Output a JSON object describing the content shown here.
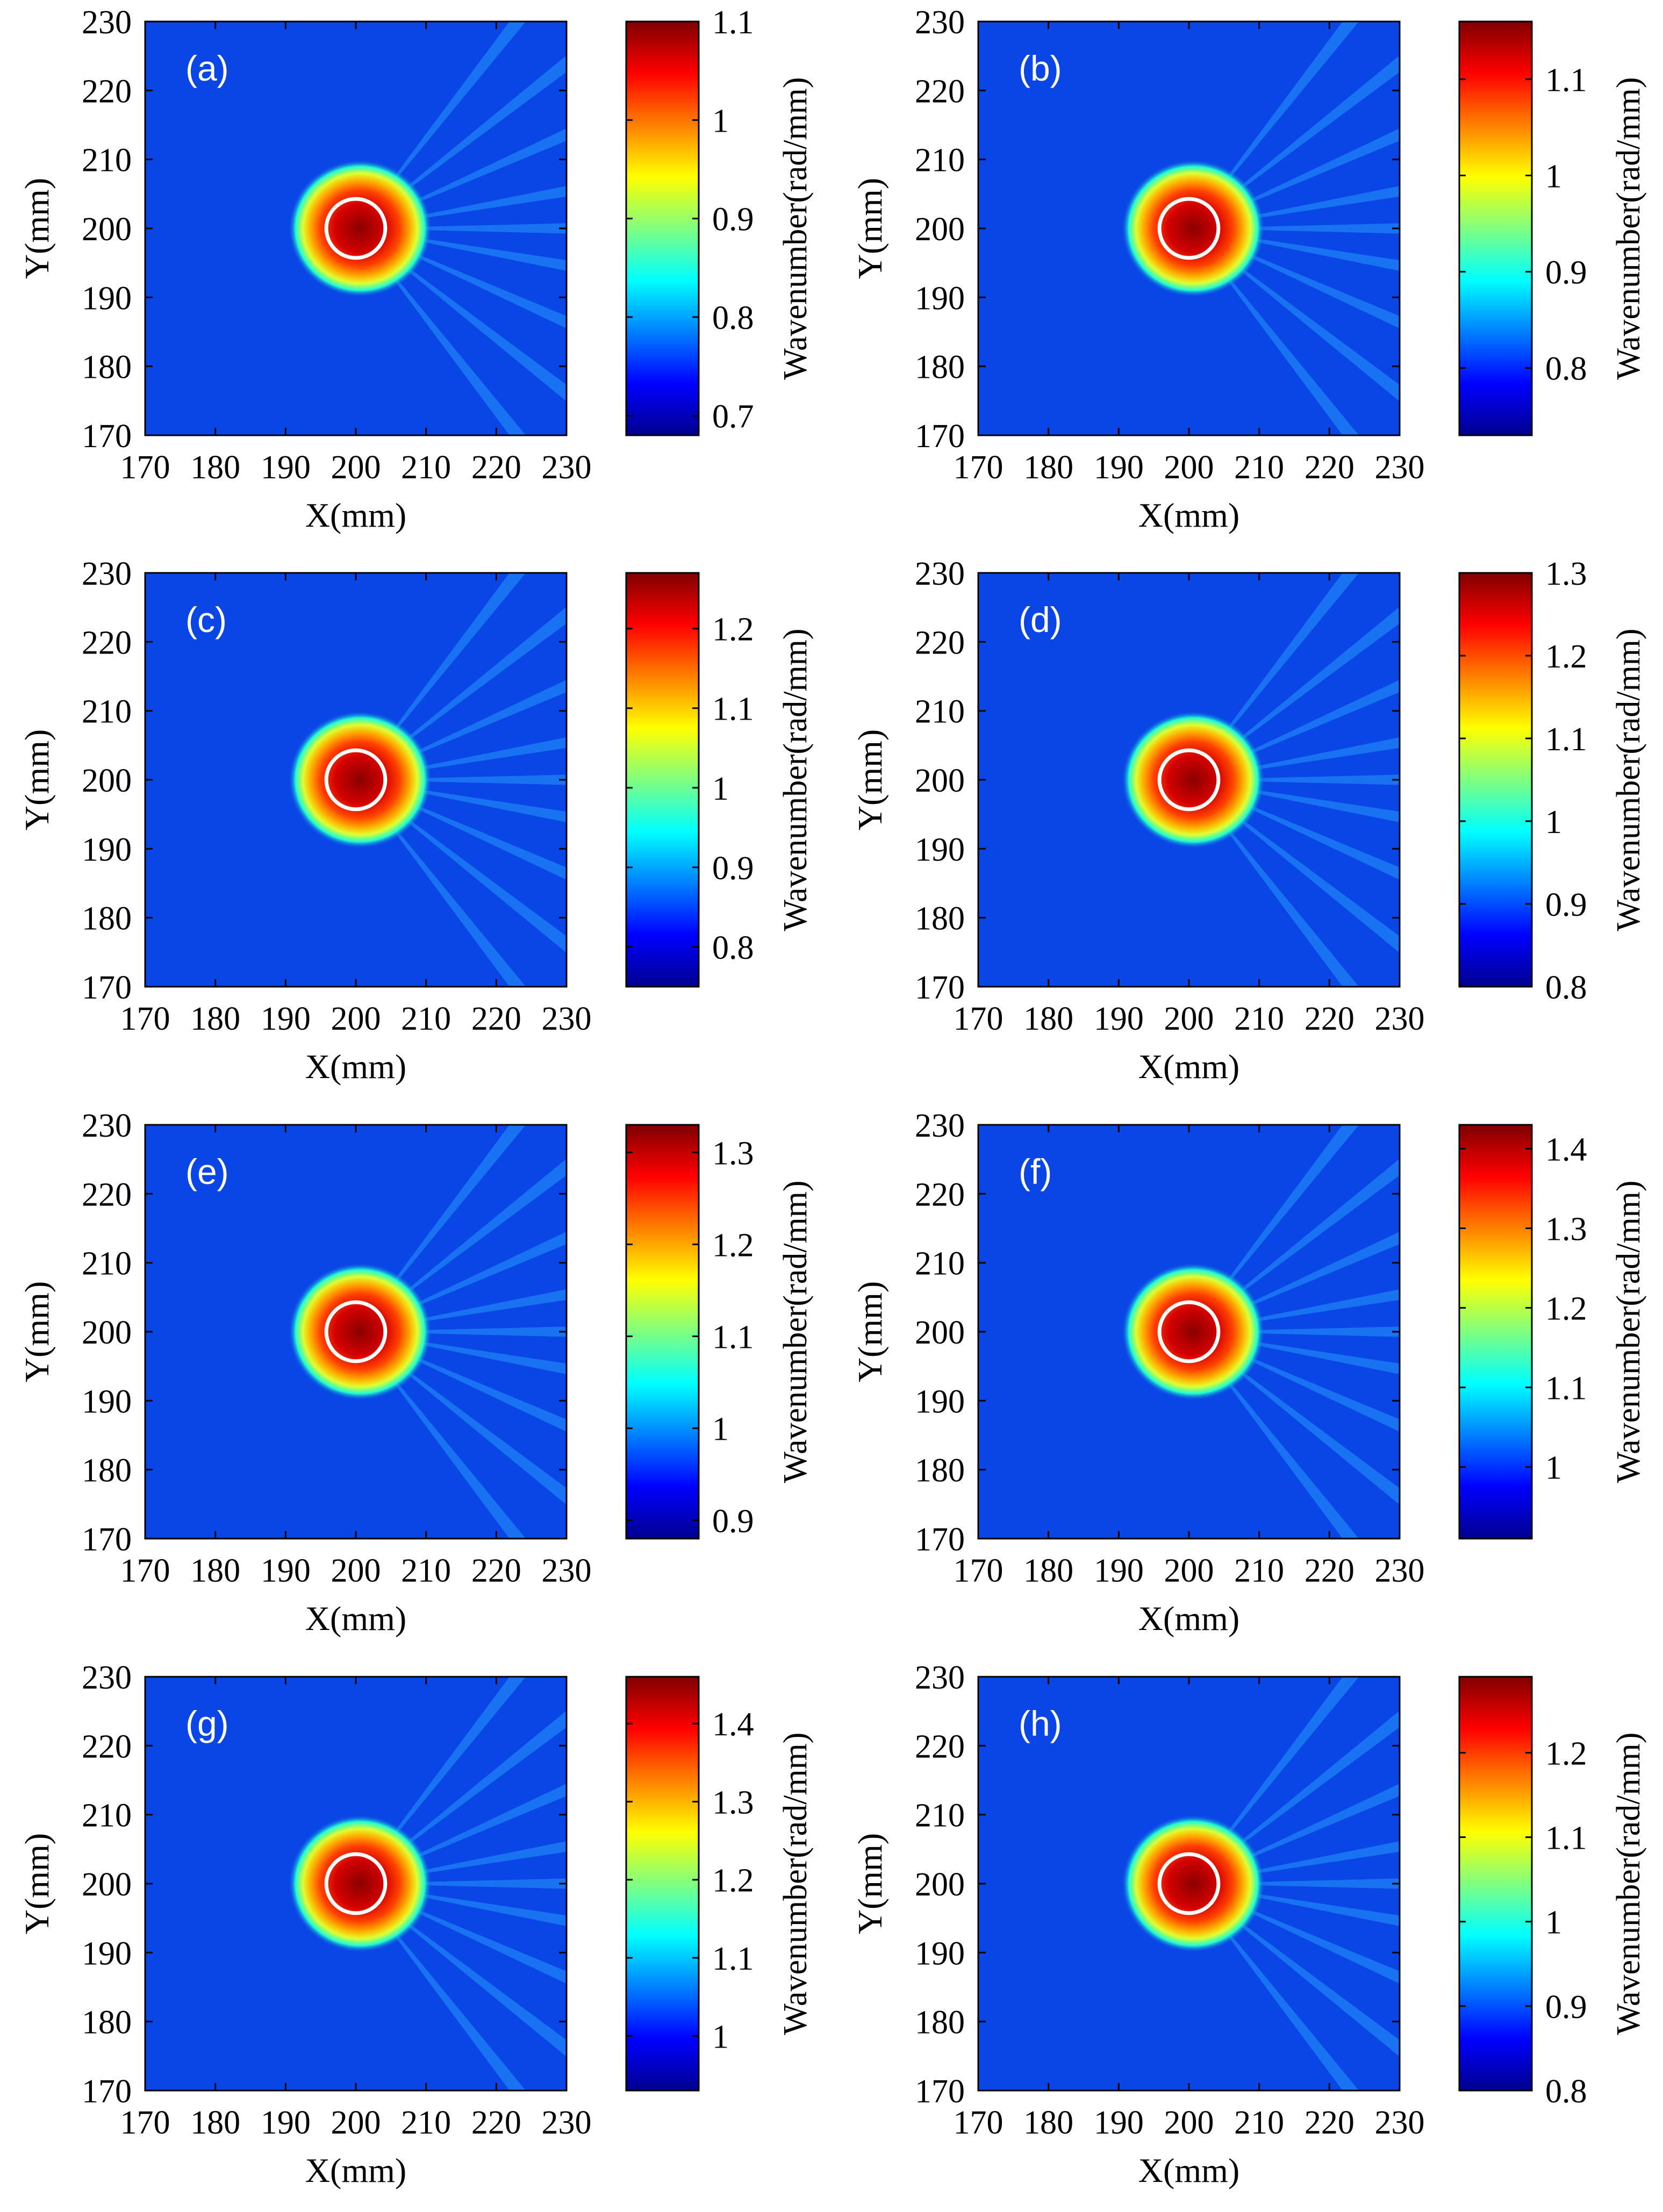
{
  "figure": {
    "description_free": true
  },
  "colormap": {
    "name": "jet",
    "stops": [
      "#00008f",
      "#0000ff",
      "#0080ff",
      "#00ffff",
      "#80ff80",
      "#ffff00",
      "#ff8000",
      "#ff0000",
      "#800000"
    ],
    "background_color": "#0a46e6",
    "ring_color": "#ffffff"
  },
  "chart_data": [
    {
      "type": "heatmap",
      "label": "(a)",
      "xlabel": "X(mm)",
      "ylabel": "Y(mm)",
      "xlim": [
        170,
        230
      ],
      "ylim": [
        170,
        230
      ],
      "xticks": [
        "170",
        "180",
        "190",
        "200",
        "210",
        "220",
        "230"
      ],
      "yticks": [
        "170",
        "180",
        "190",
        "200",
        "210",
        "220",
        "230"
      ],
      "defect_center": [
        200,
        200
      ],
      "defect_radius_mm": 4,
      "colorbar": {
        "label": "Wavenumber(rad/mm)",
        "range": [
          0.68,
          1.1
        ],
        "ticks": [
          0.7,
          0.8,
          0.9,
          1,
          1.1
        ],
        "tick_labels": [
          "0.7",
          "0.8",
          "0.9",
          "1",
          "1.1"
        ]
      },
      "background_value": 0.79
    },
    {
      "type": "heatmap",
      "label": "(b)",
      "xlabel": "X(mm)",
      "ylabel": "Y(mm)",
      "xlim": [
        170,
        230
      ],
      "ylim": [
        170,
        230
      ],
      "xticks": [
        "170",
        "180",
        "190",
        "200",
        "210",
        "220",
        "230"
      ],
      "yticks": [
        "170",
        "180",
        "190",
        "200",
        "210",
        "220",
        "230"
      ],
      "defect_center": [
        200,
        200
      ],
      "defect_radius_mm": 4,
      "colorbar": {
        "label": "Wavenumber(rad/mm)",
        "range": [
          0.73,
          1.16
        ],
        "ticks": [
          0.8,
          0.9,
          1,
          1.1
        ],
        "tick_labels": [
          "0.8",
          "0.9",
          "1",
          "1.1"
        ]
      },
      "background_value": 0.79
    },
    {
      "type": "heatmap",
      "label": "(c)",
      "xlabel": "X(mm)",
      "ylabel": "Y(mm)",
      "xlim": [
        170,
        230
      ],
      "ylim": [
        170,
        230
      ],
      "xticks": [
        "170",
        "180",
        "190",
        "200",
        "210",
        "220",
        "230"
      ],
      "yticks": [
        "170",
        "180",
        "190",
        "200",
        "210",
        "220",
        "230"
      ],
      "defect_center": [
        200,
        200
      ],
      "defect_radius_mm": 4,
      "colorbar": {
        "label": "Wavenumber(rad/mm)",
        "range": [
          0.75,
          1.27
        ],
        "ticks": [
          0.8,
          0.9,
          1,
          1.1,
          1.2
        ],
        "tick_labels": [
          "0.8",
          "0.9",
          "1",
          "1.1",
          "1.2"
        ]
      },
      "background_value": 0.83
    },
    {
      "type": "heatmap",
      "label": "(d)",
      "xlabel": "X(mm)",
      "ylabel": "Y(mm)",
      "xlim": [
        170,
        230
      ],
      "ylim": [
        170,
        230
      ],
      "xticks": [
        "170",
        "180",
        "190",
        "200",
        "210",
        "220",
        "230"
      ],
      "yticks": [
        "170",
        "180",
        "190",
        "200",
        "210",
        "220",
        "230"
      ],
      "defect_center": [
        200,
        200
      ],
      "defect_radius_mm": 4,
      "colorbar": {
        "label": "Wavenumber(rad/mm)",
        "range": [
          0.8,
          1.3
        ],
        "ticks": [
          0.8,
          0.9,
          1,
          1.1,
          1.2,
          1.3
        ],
        "tick_labels": [
          "0.8",
          "0.9",
          "1",
          "1.1",
          "1.2",
          "1.3"
        ]
      },
      "background_value": 0.87
    },
    {
      "type": "heatmap",
      "label": "(e)",
      "xlabel": "X(mm)",
      "ylabel": "Y(mm)",
      "xlim": [
        170,
        230
      ],
      "ylim": [
        170,
        230
      ],
      "xticks": [
        "170",
        "180",
        "190",
        "200",
        "210",
        "220",
        "230"
      ],
      "yticks": [
        "170",
        "180",
        "190",
        "200",
        "210",
        "220",
        "230"
      ],
      "defect_center": [
        200,
        200
      ],
      "defect_radius_mm": 4,
      "colorbar": {
        "label": "Wavenumber(rad/mm)",
        "range": [
          0.88,
          1.33
        ],
        "ticks": [
          0.9,
          1,
          1.1,
          1.2,
          1.3
        ],
        "tick_labels": [
          "0.9",
          "1",
          "1.1",
          "1.2",
          "1.3"
        ]
      },
      "background_value": 0.92
    },
    {
      "type": "heatmap",
      "label": "(f)",
      "xlabel": "X(mm)",
      "ylabel": "Y(mm)",
      "xlim": [
        170,
        230
      ],
      "ylim": [
        170,
        230
      ],
      "xticks": [
        "170",
        "180",
        "190",
        "200",
        "210",
        "220",
        "230"
      ],
      "yticks": [
        "170",
        "180",
        "190",
        "200",
        "210",
        "220",
        "230"
      ],
      "defect_center": [
        200,
        200
      ],
      "defect_radius_mm": 4,
      "colorbar": {
        "label": "Wavenumber(rad/mm)",
        "range": [
          0.91,
          1.43
        ],
        "ticks": [
          1,
          1.1,
          1.2,
          1.3,
          1.4
        ],
        "tick_labels": [
          "1",
          "1.1",
          "1.2",
          "1.3",
          "1.4"
        ]
      },
      "background_value": 0.96
    },
    {
      "type": "heatmap",
      "label": "(g)",
      "xlabel": "X(mm)",
      "ylabel": "Y(mm)",
      "xlim": [
        170,
        230
      ],
      "ylim": [
        170,
        230
      ],
      "xticks": [
        "170",
        "180",
        "190",
        "200",
        "210",
        "220",
        "230"
      ],
      "yticks": [
        "170",
        "180",
        "190",
        "200",
        "210",
        "220",
        "230"
      ],
      "defect_center": [
        200,
        200
      ],
      "defect_radius_mm": 4,
      "colorbar": {
        "label": "Wavenumber(rad/mm)",
        "range": [
          0.93,
          1.46
        ],
        "ticks": [
          1,
          1.1,
          1.2,
          1.3,
          1.4
        ],
        "tick_labels": [
          "1",
          "1.1",
          "1.2",
          "1.3",
          "1.4"
        ]
      },
      "background_value": 1.0
    },
    {
      "type": "heatmap",
      "label": "(h)",
      "xlabel": "X(mm)",
      "ylabel": "Y(mm)",
      "xlim": [
        170,
        230
      ],
      "ylim": [
        170,
        230
      ],
      "xticks": [
        "170",
        "180",
        "190",
        "200",
        "210",
        "220",
        "230"
      ],
      "yticks": [
        "170",
        "180",
        "190",
        "200",
        "210",
        "220",
        "230"
      ],
      "defect_center": [
        200,
        200
      ],
      "defect_radius_mm": 4,
      "colorbar": {
        "label": "Wavenumber(rad/mm)",
        "range": [
          0.8,
          1.29
        ],
        "ticks": [
          0.8,
          0.9,
          1,
          1.1,
          1.2
        ],
        "tick_labels": [
          "0.8",
          "0.9",
          "1",
          "1.1",
          "1.2"
        ]
      },
      "background_value": 0.87
    }
  ]
}
